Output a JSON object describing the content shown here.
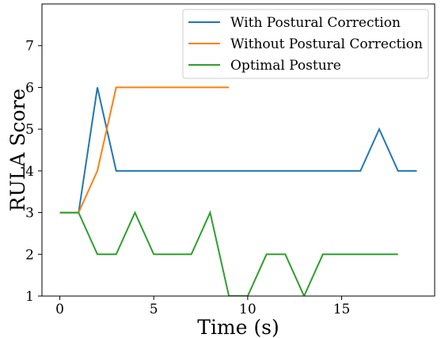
{
  "chart_data": {
    "type": "line",
    "title": "",
    "xlabel": "Time (s)",
    "ylabel": "RULA Score",
    "xlim": [
      -0.95,
      19.95
    ],
    "ylim": [
      1,
      8
    ],
    "xticks": [
      0,
      5,
      10,
      15
    ],
    "yticks": [
      1,
      2,
      3,
      4,
      5,
      6,
      7
    ],
    "grid": false,
    "legend_position": "top-right",
    "series": [
      {
        "name": "With Postural Correction",
        "color": "#1f77b4",
        "x": [
          0,
          1,
          2,
          3,
          4,
          5,
          6,
          7,
          8,
          9,
          10,
          11,
          12,
          13,
          14,
          15,
          16,
          17,
          18,
          19
        ],
        "values": [
          3,
          3,
          6,
          4,
          4,
          4,
          4,
          4,
          4,
          4,
          4,
          4,
          4,
          4,
          4,
          4,
          4,
          5,
          4,
          4
        ]
      },
      {
        "name": "Without Postural Correction",
        "color": "#ff7f0e",
        "x": [
          0,
          1,
          2,
          3,
          4,
          5,
          6,
          7,
          8,
          9
        ],
        "values": [
          3,
          3,
          4,
          6,
          6,
          6,
          6,
          6,
          6,
          6
        ]
      },
      {
        "name": "Optimal Posture",
        "color": "#2ca02c",
        "x": [
          0,
          1,
          2,
          3,
          4,
          5,
          6,
          7,
          8,
          9,
          10,
          11,
          12,
          13,
          14,
          15,
          16,
          17,
          18
        ],
        "values": [
          3,
          3,
          2,
          2,
          3,
          2,
          2,
          2,
          3,
          1,
          1,
          2,
          2,
          1,
          2,
          2,
          2,
          2,
          2
        ]
      }
    ]
  }
}
